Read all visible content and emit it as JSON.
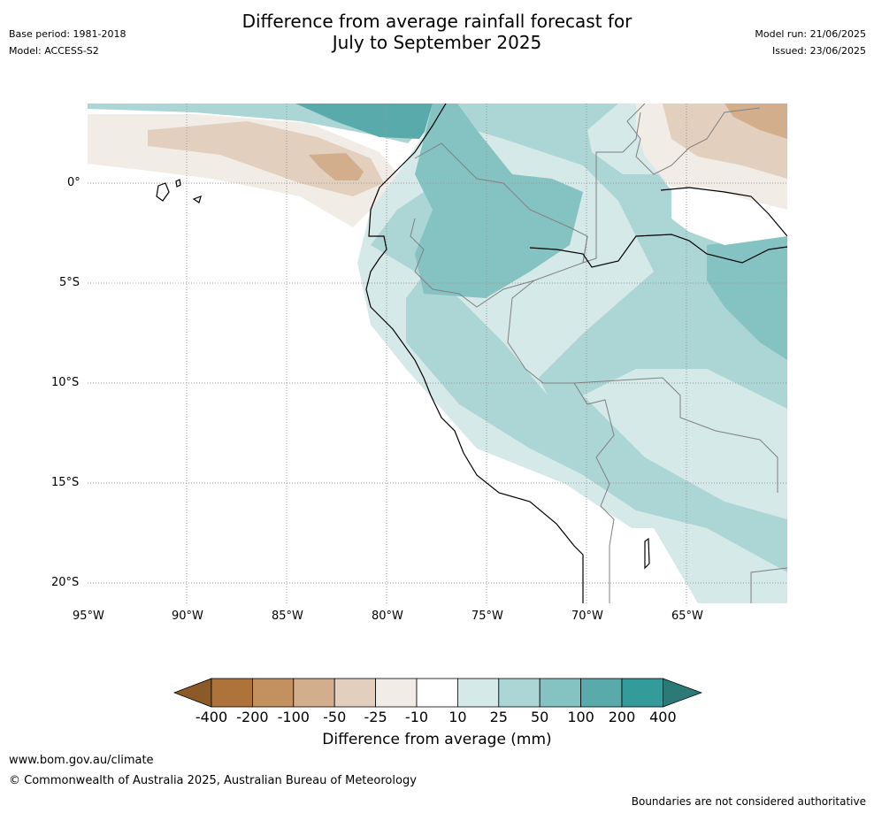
{
  "header": {
    "base_period": "Base period: 1981-2018",
    "model": "Model: ACCESS-S2",
    "title_line1": "Difference from average rainfall forecast for",
    "title_line2": "July to September 2025",
    "model_run": "Model run: 21/06/2025",
    "issued": "Issued: 23/06/2025"
  },
  "map": {
    "lat_labels": [
      "0°",
      "5°S",
      "10°S",
      "15°S",
      "20°S"
    ],
    "lon_labels": [
      "95°W",
      "90°W",
      "85°W",
      "80°W",
      "75°W",
      "70°W",
      "65°W"
    ],
    "colors": {
      "land_outline": "#000000",
      "border": "#808080",
      "grid": "#999999"
    }
  },
  "legend": {
    "title": "Difference from average (mm)",
    "tick_labels": [
      "-400",
      "-200",
      "-100",
      "-50",
      "-25",
      "-10",
      "10",
      "25",
      "50",
      "100",
      "200",
      "400"
    ],
    "colors": [
      "#8c5a28",
      "#ad733b",
      "#c2915f",
      "#d3ae8c",
      "#e3cfbd",
      "#f2ece6",
      "#ffffff",
      "#d5e9e8",
      "#acd6d6",
      "#85c3c2",
      "#58abaa",
      "#339b99",
      "#2b7a78"
    ]
  },
  "footer": {
    "url": "www.bom.gov.au/climate",
    "copyright": "© Commonwealth of Australia 2025, Australian Bureau of Meteorology",
    "disclaimer": "Boundaries are not considered authoritative"
  }
}
